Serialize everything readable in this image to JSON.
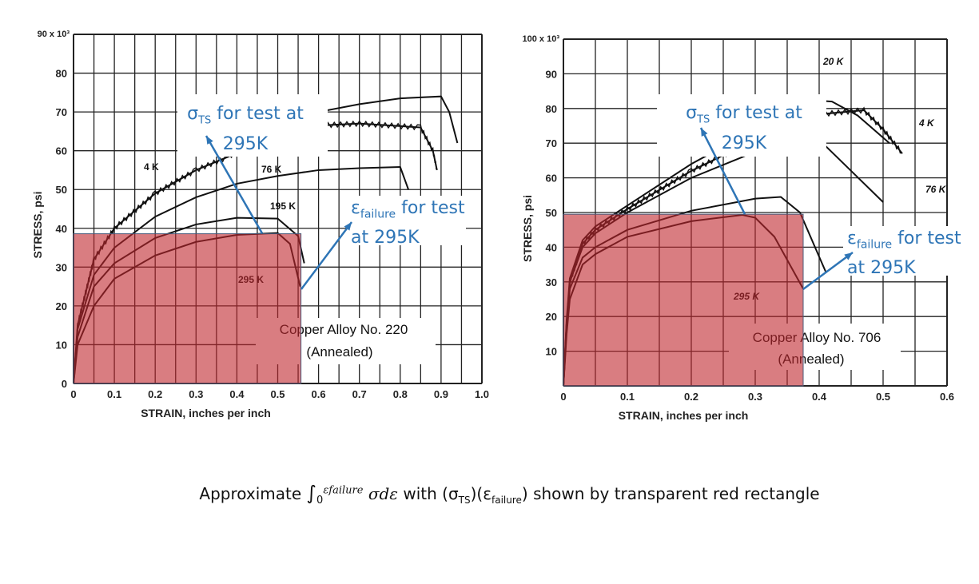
{
  "caption": {
    "prefix": "Approximate ",
    "integral": "∫",
    "lower": "0",
    "upper": "εfailure",
    "integrand": "σdε",
    "suffix": " with (σ",
    "ts_sub": "TS",
    ")(ε": ")(ε",
    "fail_sub": "failure",
    "end": ") shown by transparent red rectangle"
  },
  "colors": {
    "curve": "#111111",
    "rect": "#c0272d",
    "rect_opacity": 0.6,
    "annotation": "#2e75b6"
  },
  "chart_data": [
    {
      "type": "line",
      "title": "Copper Alloy No. 220",
      "subtitle": "(Annealed)",
      "xlabel": "STRAIN, inches per inch",
      "ylabel": "STRESS, psi",
      "ymax_label": "90 x 10³",
      "xlim": [
        0,
        1.0
      ],
      "ylim": [
        0,
        90
      ],
      "grid": true,
      "xticks": [
        "0",
        "0.1",
        "0.2",
        "0.3",
        "0.4",
        "0.5",
        "0.6",
        "0.7",
        "0.8",
        "0.9",
        "1.0"
      ],
      "yticks": [
        "0",
        "10",
        "20",
        "30",
        "40",
        "50",
        "60",
        "70",
        "80"
      ],
      "series": [
        {
          "name": "295 K",
          "x": [
            0,
            0.01,
            0.05,
            0.1,
            0.2,
            0.3,
            0.4,
            0.5,
            0.53,
            0.555
          ],
          "y": [
            0,
            10,
            20,
            27,
            33,
            36.5,
            38.3,
            38.8,
            36,
            25
          ]
        },
        {
          "name": "195 K",
          "x": [
            0,
            0.01,
            0.05,
            0.1,
            0.2,
            0.3,
            0.4,
            0.5,
            0.55,
            0.565
          ],
          "y": [
            0,
            12,
            25,
            31,
            37.5,
            41,
            42.7,
            42.5,
            38,
            31
          ]
        },
        {
          "name": "76 K",
          "x": [
            0,
            0.01,
            0.05,
            0.1,
            0.2,
            0.3,
            0.4,
            0.5,
            0.6,
            0.7,
            0.8,
            0.82
          ],
          "y": [
            0,
            14,
            28,
            35,
            43,
            48,
            51.5,
            53.5,
            55,
            55.5,
            55.8,
            50
          ]
        },
        {
          "name": "4 K",
          "serrated": true,
          "x": [
            0,
            0.01,
            0.05,
            0.1,
            0.2,
            0.3,
            0.38,
            0.5,
            0.7,
            0.85,
            0.88,
            0.89
          ],
          "y": [
            0,
            15,
            32,
            40,
            49,
            55,
            58.5,
            66,
            67,
            66,
            60,
            55
          ]
        },
        {
          "name": "",
          "x": [
            0.55,
            0.7,
            0.8,
            0.9,
            0.92,
            0.94
          ],
          "y": [
            69,
            72,
            73.5,
            74,
            70,
            62
          ]
        }
      ],
      "rectangle": {
        "strain": 0.557,
        "stress": 38.6
      },
      "annotations": {
        "sigma": "σ",
        "sigma_sub": "TS",
        "sigma_text": " for test at",
        "sigma_line2": "295K",
        "eps": "ε",
        "eps_sub": "failure",
        "eps_text": " for test",
        "eps_line2": "at 295K"
      }
    },
    {
      "type": "line",
      "title": "Copper Alloy No. 706",
      "subtitle": "(Annealed)",
      "xlabel": "STRAIN, inches per inch",
      "ylabel": "STRESS, psi",
      "ymax_label": "100 x 10³",
      "xlim": [
        0,
        0.6
      ],
      "ylim": [
        0,
        100
      ],
      "grid": true,
      "xticks": [
        "0",
        "0.1",
        "0.2",
        "0.3",
        "0.4",
        "0.5",
        "0.6"
      ],
      "yticks": [
        "10",
        "20",
        "30",
        "40",
        "50",
        "60",
        "70",
        "80",
        "90"
      ],
      "series": [
        {
          "name": "295 K",
          "x": [
            0,
            0.005,
            0.01,
            0.03,
            0.05,
            0.1,
            0.2,
            0.28,
            0.3,
            0.33,
            0.375
          ],
          "y": [
            0,
            15,
            25,
            35,
            38,
            43,
            47.5,
            49.3,
            48.5,
            43,
            28
          ]
        },
        {
          "name": "",
          "x": [
            0,
            0.005,
            0.01,
            0.03,
            0.05,
            0.1,
            0.2,
            0.3,
            0.34,
            0.37,
            0.41
          ],
          "y": [
            0,
            17,
            28,
            37,
            40,
            45,
            50.5,
            54,
            54.5,
            50,
            33
          ]
        },
        {
          "name": "76 K",
          "x": [
            0,
            0.005,
            0.01,
            0.03,
            0.05,
            0.1,
            0.2,
            0.28,
            0.36,
            0.4,
            0.45,
            0.5
          ],
          "y": [
            0,
            18,
            30,
            40,
            44,
            50,
            60,
            66,
            72.5,
            71,
            62,
            53
          ]
        },
        {
          "name": "4 K",
          "serrated": true,
          "x": [
            0,
            0.005,
            0.01,
            0.03,
            0.05,
            0.1,
            0.2,
            0.25,
            0.38,
            0.47,
            0.5,
            0.53
          ],
          "y": [
            0,
            18,
            30,
            41,
            45,
            51,
            62,
            66.5,
            78,
            79.5,
            74,
            67
          ]
        },
        {
          "name": "20 K",
          "x": [
            0,
            0.005,
            0.01,
            0.03,
            0.05,
            0.1,
            0.2,
            0.25,
            0.38,
            0.42,
            0.46,
            0.51
          ],
          "y": [
            0,
            19,
            31,
            42,
            46,
            52,
            64,
            69,
            82.5,
            82,
            78,
            70
          ]
        }
      ],
      "rectangle": {
        "strain": 0.375,
        "stress": 49.5
      },
      "annotations": {
        "sigma": "σ",
        "sigma_sub": "TS",
        "sigma_text": " for test at",
        "sigma_line2": "295K",
        "eps": "ε",
        "eps_sub": "failure",
        "eps_text": " for test",
        "eps_line2": "at 295K"
      }
    }
  ]
}
